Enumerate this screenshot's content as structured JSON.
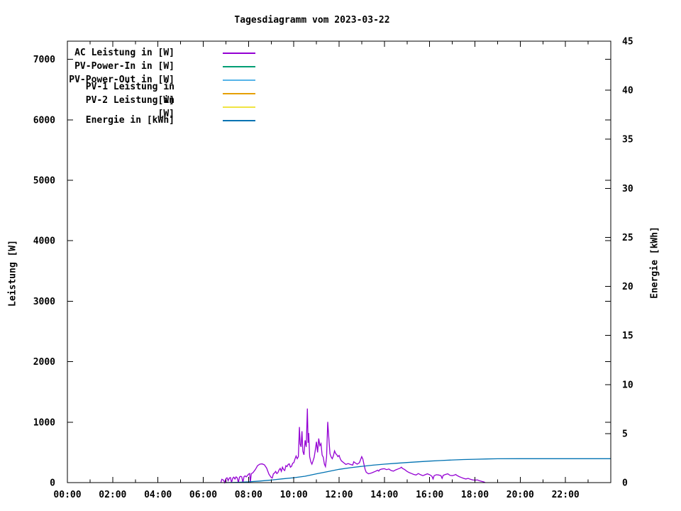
{
  "title": "Tagesdiagramm vom 2023-03-22",
  "axes": {
    "left_label": "Leistung [W]",
    "right_label": "Energie [kWh]"
  },
  "chart_data": {
    "type": "line",
    "title": "Tagesdiagramm vom 2023-03-22",
    "grid": false,
    "background": "#ffffff",
    "legend_position": "top-left",
    "x_axis": {
      "range_hours": [
        0,
        24
      ],
      "minor_tick_every_hours": 1,
      "major_tick_hours": [
        0,
        2,
        4,
        6,
        8,
        10,
        12,
        14,
        16,
        18,
        20,
        22
      ],
      "major_tick_labels": [
        "00:00",
        "02:00",
        "04:00",
        "06:00",
        "08:00",
        "10:00",
        "12:00",
        "14:00",
        "16:00",
        "18:00",
        "20:00",
        "22:00"
      ]
    },
    "y_left": {
      "label": "Leistung [W]",
      "range": [
        0,
        7300
      ],
      "ticks": [
        0,
        1000,
        2000,
        3000,
        4000,
        5000,
        6000,
        7000
      ]
    },
    "y_right": {
      "label": "Energie [kWh]",
      "range": [
        0,
        45
      ],
      "ticks": [
        0,
        5,
        10,
        15,
        20,
        25,
        30,
        35,
        40,
        45
      ]
    },
    "series": [
      {
        "name": "AC Leistung in [W]",
        "color": "#9400d3",
        "axis": "left",
        "points": [
          [
            6.78,
            0
          ],
          [
            6.82,
            55
          ],
          [
            6.9,
            40
          ],
          [
            6.95,
            0
          ],
          [
            7.0,
            65
          ],
          [
            7.05,
            80
          ],
          [
            7.1,
            30
          ],
          [
            7.15,
            75
          ],
          [
            7.2,
            85
          ],
          [
            7.25,
            0
          ],
          [
            7.3,
            70
          ],
          [
            7.35,
            90
          ],
          [
            7.4,
            60
          ],
          [
            7.45,
            95
          ],
          [
            7.5,
            80
          ],
          [
            7.55,
            0
          ],
          [
            7.6,
            90
          ],
          [
            7.65,
            105
          ],
          [
            7.7,
            95
          ],
          [
            7.75,
            0
          ],
          [
            7.8,
            100
          ],
          [
            7.85,
            110
          ],
          [
            7.9,
            95
          ],
          [
            7.95,
            115
          ],
          [
            8.0,
            140
          ],
          [
            8.05,
            150
          ],
          [
            8.08,
            0
          ],
          [
            8.12,
            145
          ],
          [
            8.2,
            165
          ],
          [
            8.3,
            215
          ],
          [
            8.4,
            280
          ],
          [
            8.5,
            305
          ],
          [
            8.6,
            310
          ],
          [
            8.7,
            295
          ],
          [
            8.8,
            240
          ],
          [
            8.9,
            140
          ],
          [
            9.0,
            85
          ],
          [
            9.05,
            75
          ],
          [
            9.1,
            145
          ],
          [
            9.15,
            160
          ],
          [
            9.2,
            185
          ],
          [
            9.25,
            150
          ],
          [
            9.3,
            165
          ],
          [
            9.35,
            210
          ],
          [
            9.4,
            235
          ],
          [
            9.45,
            185
          ],
          [
            9.5,
            255
          ],
          [
            9.55,
            215
          ],
          [
            9.6,
            200
          ],
          [
            9.65,
            280
          ],
          [
            9.7,
            265
          ],
          [
            9.75,
            300
          ],
          [
            9.8,
            310
          ],
          [
            9.85,
            255
          ],
          [
            9.9,
            270
          ],
          [
            9.95,
            320
          ],
          [
            10.0,
            330
          ],
          [
            10.05,
            390
          ],
          [
            10.1,
            440
          ],
          [
            10.15,
            395
          ],
          [
            10.2,
            430
          ],
          [
            10.25,
            920
          ],
          [
            10.28,
            640
          ],
          [
            10.32,
            590
          ],
          [
            10.36,
            850
          ],
          [
            10.4,
            520
          ],
          [
            10.45,
            460
          ],
          [
            10.5,
            700
          ],
          [
            10.55,
            590
          ],
          [
            10.6,
            1225
          ],
          [
            10.63,
            660
          ],
          [
            10.66,
            820
          ],
          [
            10.7,
            430
          ],
          [
            10.75,
            345
          ],
          [
            10.8,
            305
          ],
          [
            10.85,
            360
          ],
          [
            10.9,
            420
          ],
          [
            10.95,
            540
          ],
          [
            11.0,
            675
          ],
          [
            11.05,
            500
          ],
          [
            11.1,
            730
          ],
          [
            11.15,
            610
          ],
          [
            11.2,
            645
          ],
          [
            11.25,
            455
          ],
          [
            11.3,
            420
          ],
          [
            11.35,
            305
          ],
          [
            11.4,
            265
          ],
          [
            11.45,
            430
          ],
          [
            11.5,
            1005
          ],
          [
            11.53,
            830
          ],
          [
            11.56,
            660
          ],
          [
            11.6,
            475
          ],
          [
            11.65,
            425
          ],
          [
            11.7,
            395
          ],
          [
            11.75,
            445
          ],
          [
            11.8,
            525
          ],
          [
            11.85,
            480
          ],
          [
            11.9,
            460
          ],
          [
            11.95,
            430
          ],
          [
            12.0,
            450
          ],
          [
            12.05,
            395
          ],
          [
            12.1,
            360
          ],
          [
            12.2,
            330
          ],
          [
            12.3,
            300
          ],
          [
            12.4,
            315
          ],
          [
            12.5,
            300
          ],
          [
            12.6,
            290
          ],
          [
            12.65,
            345
          ],
          [
            12.7,
            330
          ],
          [
            12.8,
            305
          ],
          [
            12.9,
            330
          ],
          [
            13.0,
            430
          ],
          [
            13.05,
            390
          ],
          [
            13.1,
            300
          ],
          [
            13.15,
            220
          ],
          [
            13.2,
            170
          ],
          [
            13.3,
            145
          ],
          [
            13.4,
            155
          ],
          [
            13.5,
            170
          ],
          [
            13.6,
            185
          ],
          [
            13.7,
            205
          ],
          [
            13.75,
            190
          ],
          [
            13.8,
            215
          ],
          [
            13.9,
            225
          ],
          [
            14.0,
            230
          ],
          [
            14.1,
            215
          ],
          [
            14.2,
            225
          ],
          [
            14.3,
            200
          ],
          [
            14.4,
            190
          ],
          [
            14.5,
            210
          ],
          [
            14.6,
            225
          ],
          [
            14.7,
            240
          ],
          [
            14.75,
            255
          ],
          [
            14.8,
            235
          ],
          [
            14.9,
            215
          ],
          [
            15.0,
            185
          ],
          [
            15.1,
            165
          ],
          [
            15.2,
            150
          ],
          [
            15.3,
            135
          ],
          [
            15.4,
            125
          ],
          [
            15.5,
            150
          ],
          [
            15.6,
            130
          ],
          [
            15.7,
            115
          ],
          [
            15.8,
            130
          ],
          [
            15.9,
            145
          ],
          [
            16.0,
            130
          ],
          [
            16.1,
            105
          ],
          [
            16.15,
            60
          ],
          [
            16.2,
            115
          ],
          [
            16.3,
            130
          ],
          [
            16.4,
            125
          ],
          [
            16.5,
            115
          ],
          [
            16.55,
            70
          ],
          [
            16.6,
            120
          ],
          [
            16.7,
            135
          ],
          [
            16.8,
            145
          ],
          [
            16.9,
            120
          ],
          [
            17.0,
            115
          ],
          [
            17.1,
            125
          ],
          [
            17.15,
            135
          ],
          [
            17.2,
            120
          ],
          [
            17.3,
            100
          ],
          [
            17.4,
            85
          ],
          [
            17.5,
            70
          ],
          [
            17.6,
            60
          ],
          [
            17.7,
            70
          ],
          [
            17.8,
            55
          ],
          [
            17.9,
            45
          ],
          [
            18.0,
            40
          ],
          [
            18.1,
            45
          ],
          [
            18.2,
            30
          ],
          [
            18.3,
            20
          ],
          [
            18.4,
            10
          ],
          [
            18.45,
            0
          ]
        ]
      },
      {
        "name": "PV-Power-In in [W]",
        "color": "#009e73",
        "axis": "left",
        "points": []
      },
      {
        "name": "PV-Power-Out in [W]",
        "color": "#56b4e9",
        "axis": "left",
        "points": []
      },
      {
        "name": "PV-1 Leistung in [W]",
        "color": "#e69f00",
        "axis": "left",
        "points": []
      },
      {
        "name": "PV-2 Leistung in [W]",
        "color": "#f0e442",
        "axis": "left",
        "points": []
      },
      {
        "name": "Energie in [kWh]",
        "color": "#0072b2",
        "axis": "right",
        "points": [
          [
            7.0,
            0
          ],
          [
            7.5,
            0.03
          ],
          [
            8.0,
            0.08
          ],
          [
            8.5,
            0.16
          ],
          [
            9.0,
            0.26
          ],
          [
            9.5,
            0.38
          ],
          [
            10.0,
            0.5
          ],
          [
            10.5,
            0.65
          ],
          [
            11.0,
            0.9
          ],
          [
            11.5,
            1.12
          ],
          [
            12.0,
            1.35
          ],
          [
            12.5,
            1.52
          ],
          [
            13.0,
            1.66
          ],
          [
            13.5,
            1.78
          ],
          [
            14.0,
            1.88
          ],
          [
            14.5,
            1.97
          ],
          [
            15.0,
            2.05
          ],
          [
            15.5,
            2.12
          ],
          [
            16.0,
            2.19
          ],
          [
            16.5,
            2.25
          ],
          [
            17.0,
            2.31
          ],
          [
            17.5,
            2.35
          ],
          [
            18.0,
            2.38
          ],
          [
            18.5,
            2.41
          ],
          [
            19.0,
            2.43
          ],
          [
            20.0,
            2.44
          ],
          [
            22.0,
            2.44
          ],
          [
            24.0,
            2.44
          ]
        ]
      }
    ]
  },
  "colors": {
    "axis": "#000000",
    "text": "#000000",
    "background": "#ffffff"
  }
}
